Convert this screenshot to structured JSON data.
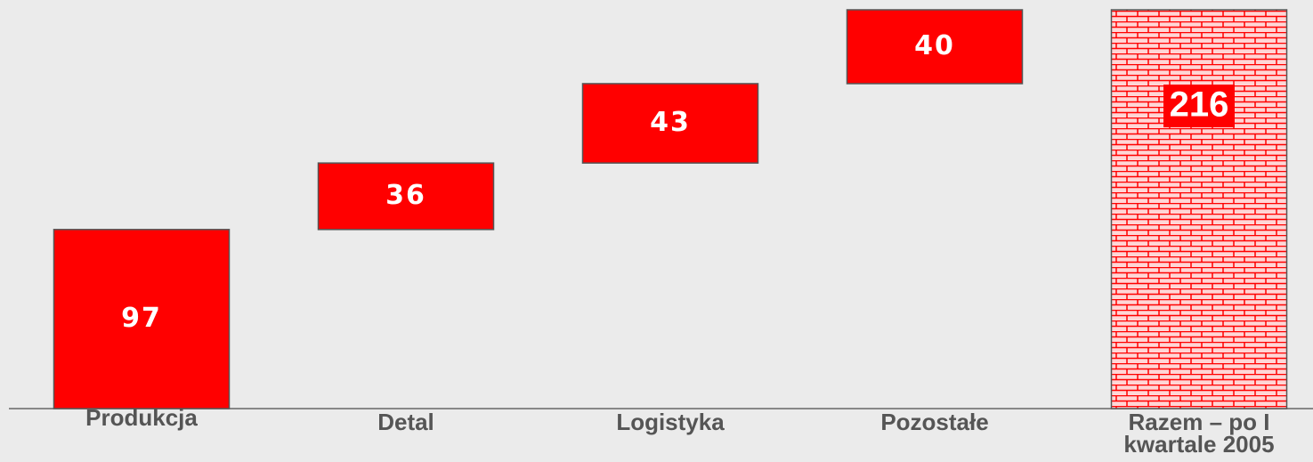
{
  "chart_data": {
    "type": "waterfall",
    "categories": [
      "Produkcja",
      "Detal",
      "Logistyka",
      "Pozostałe",
      "Razem – po I kwartale 2005"
    ],
    "values": [
      97,
      36,
      43,
      40,
      216
    ],
    "is_total": [
      false,
      false,
      false,
      false,
      true
    ],
    "color": "#ff0000"
  }
}
